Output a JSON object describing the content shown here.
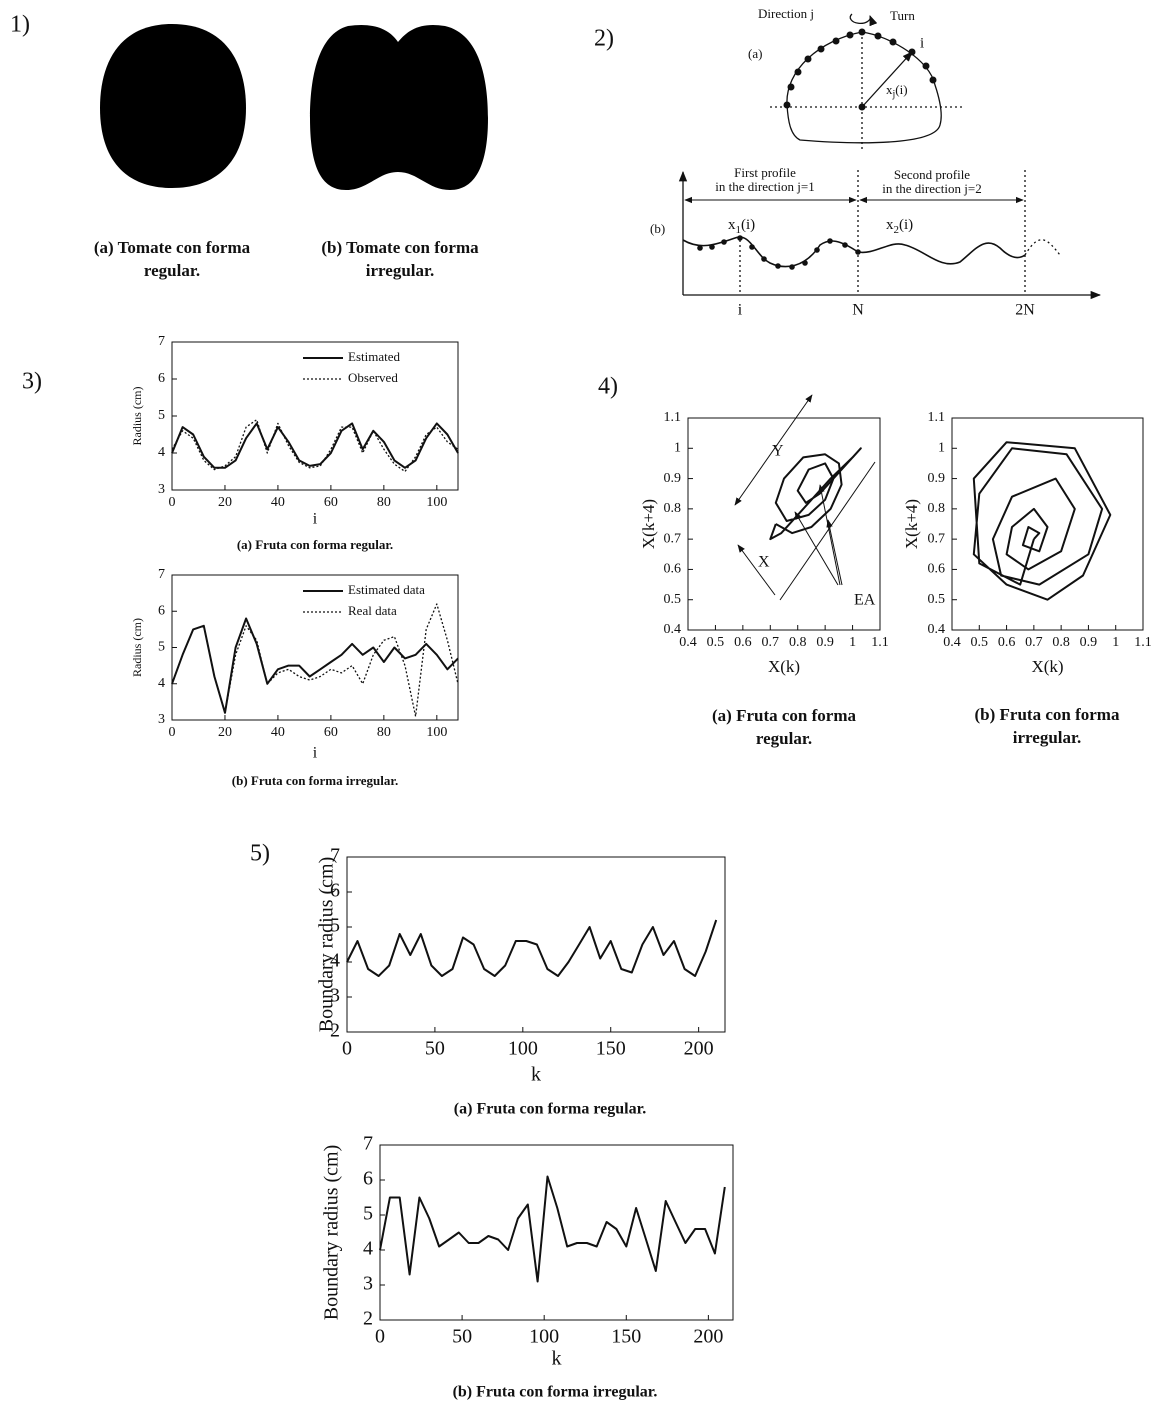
{
  "panel_labels": [
    "1)",
    "2)",
    "3)",
    "4)",
    "5)"
  ],
  "tomatoes": {
    "captions": [
      [
        "(a) Tomate con forma",
        "regular."
      ],
      [
        "(b) Tomate con forma",
        "irregular."
      ]
    ]
  },
  "diagram": {
    "direction": "Direction j",
    "turn": "Turn",
    "label_a": "(a)",
    "point_i": "i",
    "radius": {
      "base": "x",
      "sub": "j",
      "rest": "(i)"
    },
    "label_b": "(b)",
    "first_profile": [
      "First profile",
      "in the direction  j=1"
    ],
    "second_profile": [
      "Second profile",
      "in the direction  j=2"
    ],
    "x1": {
      "base": "x",
      "sub": "1",
      "rest": "(i)"
    },
    "x2": {
      "base": "x",
      "sub": "2",
      "rest": "(i)"
    },
    "axis_ticks": [
      "i",
      "N",
      "2N"
    ]
  },
  "chart_data": [
    {
      "type": "line",
      "caption": [
        "(a) Fruta con forma regular."
      ],
      "xlabel": "i",
      "ylabel": "Radius (cm)",
      "x": [
        0,
        4,
        8,
        12,
        16,
        20,
        24,
        28,
        32,
        36,
        40,
        44,
        48,
        52,
        56,
        60,
        64,
        68,
        72,
        76,
        80,
        84,
        88,
        92,
        96,
        100,
        104,
        108
      ],
      "series": [
        {
          "name": "Estimated",
          "color": "#111111",
          "dash": "solid",
          "values": [
            4.0,
            4.7,
            4.5,
            3.9,
            3.6,
            3.6,
            3.8,
            4.4,
            4.8,
            4.1,
            4.7,
            4.3,
            3.8,
            3.65,
            3.7,
            4.0,
            4.6,
            4.8,
            4.1,
            4.6,
            4.3,
            3.8,
            3.6,
            3.8,
            4.4,
            4.8,
            4.5,
            4.0
          ]
        },
        {
          "name": "Observed",
          "color": "#111111",
          "dash": "dotted",
          "values": [
            4.1,
            4.6,
            4.4,
            3.8,
            3.55,
            3.65,
            3.9,
            4.7,
            4.9,
            4.0,
            4.8,
            4.2,
            3.75,
            3.6,
            3.65,
            4.1,
            4.7,
            4.7,
            4.0,
            4.6,
            4.1,
            3.7,
            3.5,
            3.9,
            4.5,
            4.7,
            4.3,
            4.1
          ]
        }
      ],
      "xlim": [
        0,
        108
      ],
      "xticks": [
        0,
        20,
        40,
        60,
        80,
        100
      ],
      "ylim": [
        3,
        7
      ],
      "yticks": [
        3,
        4,
        5,
        6,
        7
      ],
      "legend": "upper right"
    },
    {
      "type": "line",
      "caption": [
        "(b) Fruta con forma irregular."
      ],
      "xlabel": "i",
      "ylabel": "Radius (cm)",
      "x": [
        0,
        4,
        8,
        12,
        16,
        20,
        24,
        28,
        32,
        36,
        40,
        44,
        48,
        52,
        56,
        60,
        64,
        68,
        72,
        76,
        80,
        84,
        88,
        92,
        96,
        100,
        104,
        108
      ],
      "series": [
        {
          "name": "Estimated data",
          "color": "#111111",
          "dash": "solid",
          "values": [
            4.0,
            4.8,
            5.5,
            5.6,
            4.2,
            3.2,
            5.0,
            5.8,
            5.1,
            4.0,
            4.4,
            4.5,
            4.5,
            4.2,
            4.4,
            4.6,
            4.8,
            5.1,
            4.8,
            5.0,
            4.6,
            5.0,
            4.7,
            4.8,
            5.1,
            4.8,
            4.4,
            4.7
          ]
        },
        {
          "name": "Real data",
          "color": "#111111",
          "dash": "dotted",
          "values": [
            4.0,
            4.8,
            5.5,
            5.6,
            4.2,
            3.2,
            4.8,
            5.6,
            5.2,
            4.0,
            4.3,
            4.4,
            4.2,
            4.1,
            4.2,
            4.4,
            4.3,
            4.5,
            4.0,
            4.8,
            5.2,
            5.3,
            4.5,
            3.1,
            5.5,
            6.2,
            5.2,
            4.0
          ]
        }
      ],
      "xlim": [
        0,
        108
      ],
      "xticks": [
        0,
        20,
        40,
        60,
        80,
        100
      ],
      "ylim": [
        3,
        7
      ],
      "yticks": [
        3,
        4,
        5,
        6,
        7
      ],
      "legend": "upper right"
    },
    {
      "type": "line",
      "caption": [
        "(a) Fruta con forma",
        "regular."
      ],
      "xlabel": "X(k)",
      "ylabel": "X(k+4)",
      "annotations": [
        "Y",
        "X",
        "EA"
      ],
      "x": [
        0.72,
        0.78,
        0.85,
        0.92,
        0.96,
        0.95,
        0.9,
        0.82,
        0.75,
        0.72,
        0.76,
        0.84,
        0.9,
        0.93,
        0.9,
        0.84,
        0.8,
        0.83,
        0.88,
        0.98,
        1.03,
        1.0,
        0.92,
        0.82,
        0.74,
        0.7,
        0.72
      ],
      "series": [
        {
          "color": "#111111",
          "dash": "solid",
          "values": [
            0.75,
            0.72,
            0.74,
            0.8,
            0.88,
            0.95,
            0.98,
            0.97,
            0.9,
            0.82,
            0.76,
            0.78,
            0.83,
            0.9,
            0.95,
            0.93,
            0.86,
            0.82,
            0.85,
            0.95,
            1.0,
            0.97,
            0.9,
            0.8,
            0.72,
            0.7,
            0.75
          ]
        }
      ],
      "xlim": [
        0.4,
        1.1
      ],
      "xticks": [
        0.4,
        0.5,
        0.6,
        0.7,
        0.8,
        0.9,
        1,
        1.1
      ],
      "ylim": [
        0.4,
        1.1
      ],
      "yticks": [
        0.4,
        0.5,
        0.6,
        0.7,
        0.8,
        0.9,
        1,
        1.1
      ]
    },
    {
      "type": "line",
      "caption": [
        "(b) Fruta con forma",
        "irregular."
      ],
      "xlabel": "X(k)",
      "ylabel": "X(k+4)",
      "x": [
        0.7,
        0.72,
        0.68,
        0.66,
        0.72,
        0.75,
        0.7,
        0.62,
        0.6,
        0.68,
        0.8,
        0.85,
        0.78,
        0.62,
        0.55,
        0.58,
        0.72,
        0.9,
        0.95,
        0.82,
        0.62,
        0.5,
        0.48,
        0.6,
        0.75,
        0.88,
        0.98,
        0.85,
        0.6,
        0.48,
        0.5,
        0.65,
        0.7
      ],
      "series": [
        {
          "color": "#111111",
          "dash": "solid",
          "values": [
            0.7,
            0.72,
            0.74,
            0.68,
            0.66,
            0.74,
            0.8,
            0.74,
            0.65,
            0.6,
            0.66,
            0.8,
            0.9,
            0.84,
            0.7,
            0.58,
            0.55,
            0.65,
            0.8,
            0.98,
            1.0,
            0.85,
            0.65,
            0.55,
            0.5,
            0.58,
            0.78,
            1.0,
            1.02,
            0.9,
            0.62,
            0.55,
            0.7
          ]
        }
      ],
      "xlim": [
        0.4,
        1.1
      ],
      "xticks": [
        0.4,
        0.5,
        0.6,
        0.7,
        0.8,
        0.9,
        1,
        1.1
      ],
      "ylim": [
        0.4,
        1.1
      ],
      "yticks": [
        0.4,
        0.5,
        0.6,
        0.7,
        0.8,
        0.9,
        1,
        1.1
      ]
    },
    {
      "type": "line",
      "caption": [
        "(a) Fruta con forma regular."
      ],
      "xlabel": "k",
      "ylabel": "Boundary radius (cm)",
      "x": [
        0,
        6,
        12,
        18,
        24,
        30,
        36,
        42,
        48,
        54,
        60,
        66,
        72,
        78,
        84,
        90,
        96,
        102,
        108,
        114,
        120,
        126,
        132,
        138,
        144,
        150,
        156,
        162,
        168,
        174,
        180,
        186,
        192,
        198,
        204,
        210
      ],
      "series": [
        {
          "color": "#111111",
          "dash": "solid",
          "values": [
            4.0,
            4.6,
            3.8,
            3.6,
            3.9,
            4.8,
            4.2,
            4.8,
            3.9,
            3.6,
            3.8,
            4.7,
            4.5,
            3.8,
            3.6,
            3.9,
            4.6,
            4.6,
            4.5,
            3.8,
            3.6,
            4.0,
            4.5,
            5.0,
            4.1,
            4.6,
            3.8,
            3.7,
            4.5,
            5.0,
            4.2,
            4.6,
            3.8,
            3.6,
            4.3,
            5.2
          ]
        }
      ],
      "xlim": [
        0,
        215
      ],
      "xticks": [
        0,
        50,
        100,
        150,
        200
      ],
      "ylim": [
        2,
        7
      ],
      "yticks": [
        2,
        3,
        4,
        5,
        6,
        7
      ]
    },
    {
      "type": "line",
      "caption": [
        "(b) Fruta con forma irregular."
      ],
      "xlabel": "k",
      "ylabel": "Boundary radius (cm)",
      "x": [
        0,
        6,
        12,
        18,
        24,
        30,
        36,
        42,
        48,
        54,
        60,
        66,
        72,
        78,
        84,
        90,
        96,
        102,
        108,
        114,
        120,
        126,
        132,
        138,
        144,
        150,
        156,
        162,
        168,
        174,
        180,
        186,
        192,
        198,
        204,
        210
      ],
      "series": [
        {
          "color": "#111111",
          "dash": "solid",
          "values": [
            4.0,
            5.5,
            5.5,
            3.3,
            5.5,
            4.9,
            4.1,
            4.3,
            4.5,
            4.2,
            4.2,
            4.4,
            4.3,
            4.0,
            4.9,
            5.3,
            3.1,
            6.1,
            5.2,
            4.1,
            4.2,
            4.2,
            4.1,
            4.8,
            4.6,
            4.1,
            5.2,
            4.3,
            3.4,
            5.4,
            4.8,
            4.2,
            4.6,
            4.6,
            3.9,
            5.8
          ]
        }
      ],
      "xlim": [
        0,
        215
      ],
      "xticks": [
        0,
        50,
        100,
        150,
        200
      ],
      "ylim": [
        2,
        7
      ],
      "yticks": [
        2,
        3,
        4,
        5,
        6,
        7
      ]
    }
  ]
}
